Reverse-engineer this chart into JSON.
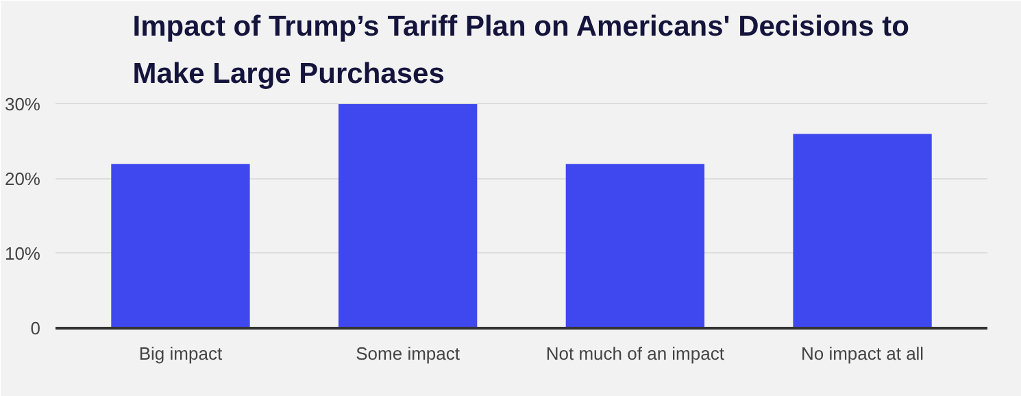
{
  "chart_data": {
    "type": "bar",
    "title": "Impact of Trump’s Tariff Plan on Americans' Decisions to Make Large Purchases",
    "categories": [
      "Big impact",
      "Some impact",
      "Not much of an impact",
      "No impact at all"
    ],
    "values": [
      22,
      30,
      22,
      26
    ],
    "color": "#3f48ee",
    "ylim": [
      0,
      31
    ],
    "yticks": [
      {
        "value": 0,
        "label": "0"
      },
      {
        "value": 10,
        "label": "10%"
      },
      {
        "value": 20,
        "label": "20%"
      },
      {
        "value": 30,
        "label": "30%"
      }
    ],
    "grid": "y"
  }
}
